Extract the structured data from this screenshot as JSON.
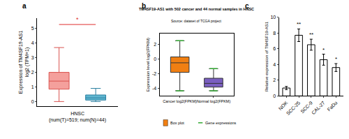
{
  "chart_data": [
    {
      "type": "box",
      "panel": "a",
      "categories": [
        null,
        null
      ],
      "y_label": [
        "Expression of TM4SF19-AS1",
        "log2 (TPM+1)"
      ],
      "x_label": [
        "HNSC",
        "(num(T)=519; num(N)=44)"
      ],
      "boxes": [
        {
          "color": "#f4a09c",
          "lower": 0,
          "q1": 0.85,
          "median": 1.4,
          "q3": 2.0,
          "upper": 3.7
        },
        {
          "color": "#5fb6d0",
          "lower": 0,
          "q1": 0.1,
          "median": 0.25,
          "q3": 0.45,
          "upper": 0.9
        }
      ],
      "significance": "*",
      "ylim": [
        -0.3,
        5.7
      ],
      "yticks": [
        0,
        1,
        2,
        3,
        4,
        5
      ]
    },
    {
      "type": "box",
      "panel": "b",
      "title": "TM4SF19-AS1 with 502 cancer and 44 normal samples in HNSC",
      "subtitle": "Source: dataset of TCGA project",
      "y_label": "Expression level log2(FPKM)",
      "categories": [
        "Cancer log2(FPKM)",
        "Normal log2(FPKM)"
      ],
      "legend_items": [
        "Box plot",
        "Gene expressions"
      ],
      "boxes": [
        {
          "color": "#f07f12",
          "lower": -4.3,
          "q1": -1.8,
          "median": -0.5,
          "q3": 0.3,
          "upper": 2.5
        },
        {
          "color": "#7a5fc0",
          "lower": -4.3,
          "q1": -3.8,
          "median": -3.3,
          "q3": -2.6,
          "upper": -1.3
        }
      ],
      "ylim": [
        -5,
        3.5
      ],
      "yticks": [
        -4,
        -2,
        0,
        2
      ]
    },
    {
      "type": "bar",
      "panel": "c",
      "categories": [
        "NOK",
        "SCC-25",
        "SCC-9",
        "CAL-27",
        "FaDu"
      ],
      "values": [
        1,
        7.7,
        6.5,
        4.6,
        3.6
      ],
      "errors": [
        0.2,
        0.8,
        0.7,
        0.7,
        0.5
      ],
      "significance": [
        null,
        "**",
        "**",
        "*",
        "*"
      ],
      "color": "#ffffff",
      "y_label": "Relative expression of TM4SF19-AS1",
      "ylim": [
        0,
        10
      ],
      "yticks": [
        0,
        2,
        4,
        6,
        8,
        10
      ]
    }
  ]
}
